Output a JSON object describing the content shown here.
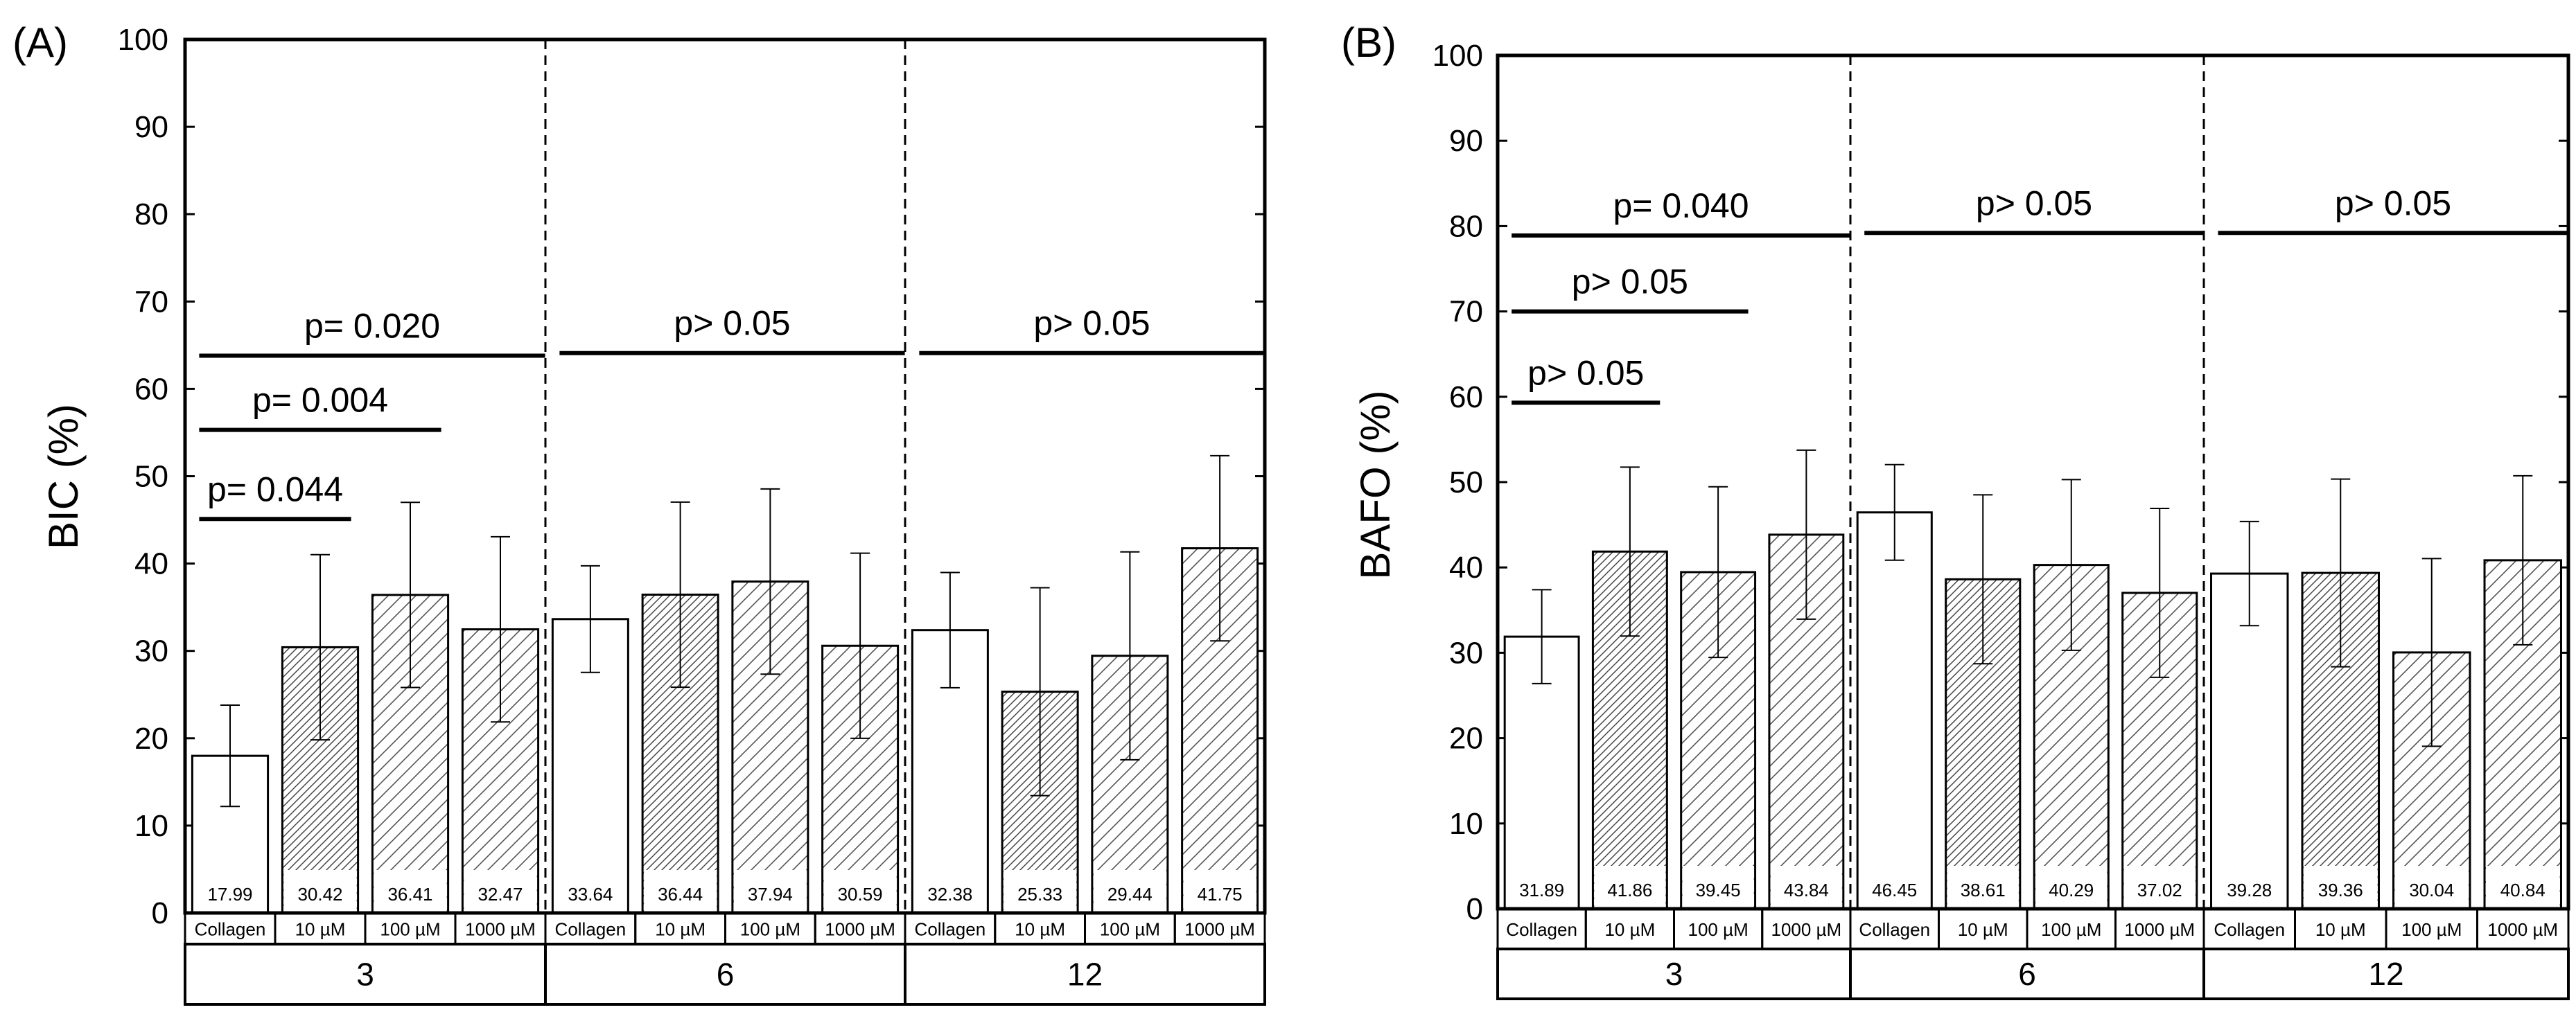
{
  "chart_data": [
    {
      "type": "bar",
      "panel_label": "(A)",
      "ylabel": "BIC (%)",
      "ylim": [
        0,
        100
      ],
      "yticks": [
        "0",
        "10",
        "20",
        "30",
        "40",
        "50",
        "60",
        "70",
        "80",
        "90",
        "100"
      ],
      "x_groups": [
        {
          "label": "3",
          "categories": [
            "Collagen",
            "10 µM",
            "100 µM",
            "1000 µM"
          ],
          "values": [
            17.99,
            30.42,
            36.41,
            32.47
          ],
          "value_labels": [
            "17.99",
            "30.42",
            "36.41",
            "32.47"
          ],
          "errors": [
            5.8,
            10.6,
            10.6,
            10.6
          ]
        },
        {
          "label": "6",
          "categories": [
            "Collagen",
            "10 µM",
            "100 µM",
            "1000 µM"
          ],
          "values": [
            33.64,
            36.44,
            37.94,
            30.59
          ],
          "value_labels": [
            "33.64",
            "36.44",
            "37.94",
            "30.59"
          ],
          "errors": [
            6.1,
            10.6,
            10.6,
            10.6
          ]
        },
        {
          "label": "12",
          "categories": [
            "Collagen",
            "10 µM",
            "100 µM",
            "1000 µM"
          ],
          "values": [
            32.38,
            25.33,
            29.44,
            41.75
          ],
          "value_labels": [
            "32.38",
            "25.33",
            "29.44",
            "41.75"
          ],
          "errors": [
            6.6,
            11.9,
            11.9,
            10.6
          ]
        }
      ],
      "bar_fill": [
        "open",
        "dense-hatch",
        "hatch",
        "hatch"
      ],
      "annotations": [
        {
          "text": "p= 0.044",
          "group": 0,
          "from": 0,
          "to": 1,
          "y": 45.1
        },
        {
          "text": "p= 0.004",
          "group": 0,
          "from": 0,
          "to": 2,
          "y": 55.3
        },
        {
          "text": "p= 0.020",
          "group": 0,
          "from": 0,
          "to": 3,
          "y": 63.8
        },
        {
          "text": "p> 0.05",
          "group": 1,
          "from": 0,
          "to": 3,
          "y": 64.1
        },
        {
          "text": "p> 0.05",
          "group": 2,
          "from": 0,
          "to": 3,
          "y": 64.1
        }
      ]
    },
    {
      "type": "bar",
      "panel_label": "(B)",
      "ylabel": "BAFO (%)",
      "ylim": [
        0,
        100
      ],
      "yticks": [
        "0",
        "10",
        "20",
        "30",
        "40",
        "50",
        "60",
        "70",
        "80",
        "90",
        "100"
      ],
      "x_groups": [
        {
          "label": "3",
          "categories": [
            "Collagen",
            "10 µM",
            "100 µM",
            "1000 µM"
          ],
          "values": [
            31.89,
            41.86,
            39.45,
            43.84
          ],
          "value_labels": [
            "31.89",
            "41.86",
            "39.45",
            "43.84"
          ],
          "errors": [
            5.5,
            9.9,
            10.0,
            9.9
          ]
        },
        {
          "label": "6",
          "categories": [
            "Collagen",
            "10 µM",
            "100 µM",
            "1000 µM"
          ],
          "values": [
            46.45,
            38.61,
            40.29,
            37.02
          ],
          "value_labels": [
            "46.45",
            "38.61",
            "40.29",
            "37.02"
          ],
          "errors": [
            5.6,
            9.9,
            10.0,
            9.9
          ]
        },
        {
          "label": "12",
          "categories": [
            "Collagen",
            "10 µM",
            "100 µM",
            "1000 µM"
          ],
          "values": [
            39.28,
            39.36,
            30.04,
            40.84
          ],
          "value_labels": [
            "39.28",
            "39.36",
            "30.04",
            "40.84"
          ],
          "errors": [
            6.1,
            11.0,
            11.0,
            9.9
          ]
        }
      ],
      "bar_fill": [
        "open",
        "dense-hatch",
        "hatch",
        "hatch"
      ],
      "annotations": [
        {
          "text": "p> 0.05",
          "group": 0,
          "from": 0,
          "to": 1,
          "y": 59.3
        },
        {
          "text": "p> 0.05",
          "group": 0,
          "from": 0,
          "to": 2,
          "y": 70.0
        },
        {
          "text": "p= 0.040",
          "group": 0,
          "from": 0,
          "to": 3,
          "y": 78.9
        },
        {
          "text": "p> 0.05",
          "group": 1,
          "from": 0,
          "to": 3,
          "y": 79.2
        },
        {
          "text": "p> 0.05",
          "group": 2,
          "from": 0,
          "to": 3,
          "y": 79.2
        }
      ]
    }
  ]
}
